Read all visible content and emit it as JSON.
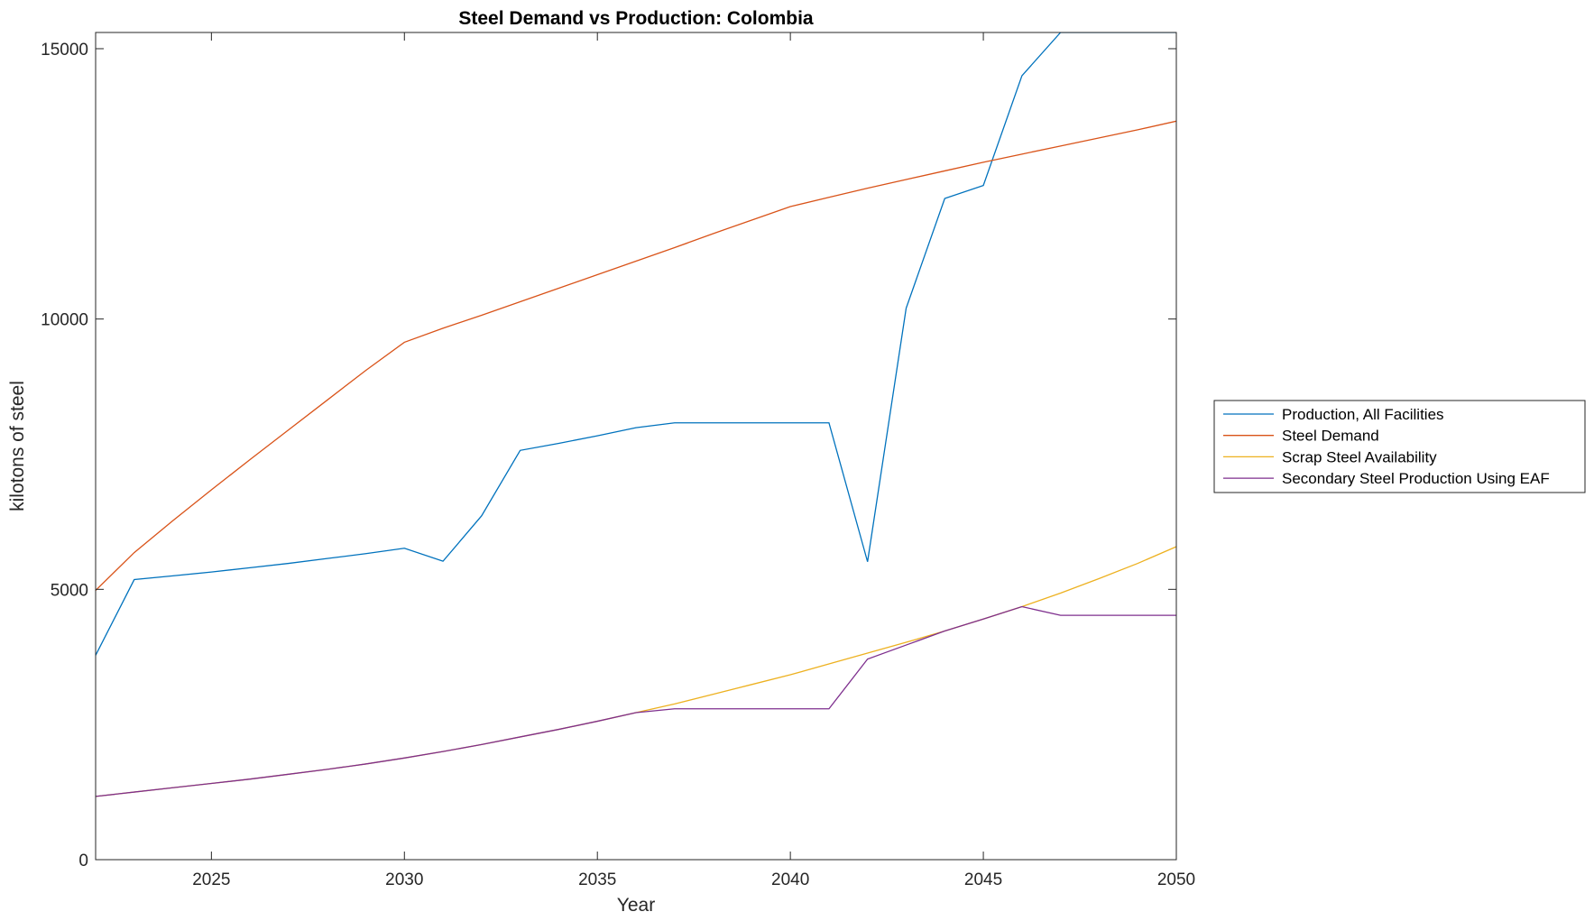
{
  "chart_data": {
    "type": "line",
    "title": "Steel Demand vs Production: Colombia",
    "xlabel": "Year",
    "ylabel": "kilotons of steel",
    "xlim": [
      2022,
      2050
    ],
    "ylim": [
      0,
      15300
    ],
    "xticks": [
      2025,
      2030,
      2035,
      2040,
      2045,
      2050
    ],
    "yticks": [
      0,
      5000,
      10000,
      15000
    ],
    "grid": false,
    "legend_position": "right",
    "x": [
      2022,
      2023,
      2024,
      2025,
      2026,
      2027,
      2028,
      2029,
      2030,
      2031,
      2032,
      2033,
      2034,
      2035,
      2036,
      2037,
      2038,
      2039,
      2040,
      2041,
      2042,
      2043,
      2044,
      2045,
      2046,
      2047,
      2048,
      2049,
      2050
    ],
    "series": [
      {
        "name": "Production, All Facilities",
        "color": "#0072BD",
        "values": [
          3780,
          5180,
          5250,
          5320,
          5400,
          5480,
          5570,
          5660,
          5760,
          5520,
          6360,
          7570,
          7700,
          7840,
          7990,
          8080,
          8080,
          8080,
          8080,
          8080,
          5510,
          10200,
          12230,
          12470,
          14500,
          15300,
          15300,
          15300,
          15300
        ]
      },
      {
        "name": "Steel Demand",
        "color": "#D95319",
        "values": [
          4980,
          5680,
          6270,
          6840,
          7400,
          7950,
          8500,
          9050,
          9570,
          9830,
          10070,
          10320,
          10570,
          10820,
          11070,
          11320,
          11580,
          11830,
          12080,
          12250,
          12420,
          12580,
          12740,
          12900,
          13050,
          13200,
          13350,
          13500,
          13660
        ]
      },
      {
        "name": "Scrap Steel Availability",
        "color": "#EDB120",
        "values": [
          1170,
          1250,
          1330,
          1410,
          1490,
          1580,
          1670,
          1770,
          1880,
          2000,
          2130,
          2270,
          2410,
          2560,
          2720,
          2880,
          3060,
          3240,
          3420,
          3620,
          3820,
          4020,
          4230,
          4450,
          4680,
          4930,
          5200,
          5480,
          5790
        ]
      },
      {
        "name": "Secondary Steel Production Using EAF",
        "color": "#7E2F8E",
        "values": [
          1170,
          1250,
          1330,
          1410,
          1490,
          1580,
          1670,
          1770,
          1880,
          2000,
          2130,
          2270,
          2410,
          2560,
          2720,
          2790,
          2790,
          2790,
          2790,
          2790,
          3710,
          3970,
          4230,
          4450,
          4680,
          4520,
          4520,
          4520,
          4520
        ]
      }
    ]
  }
}
